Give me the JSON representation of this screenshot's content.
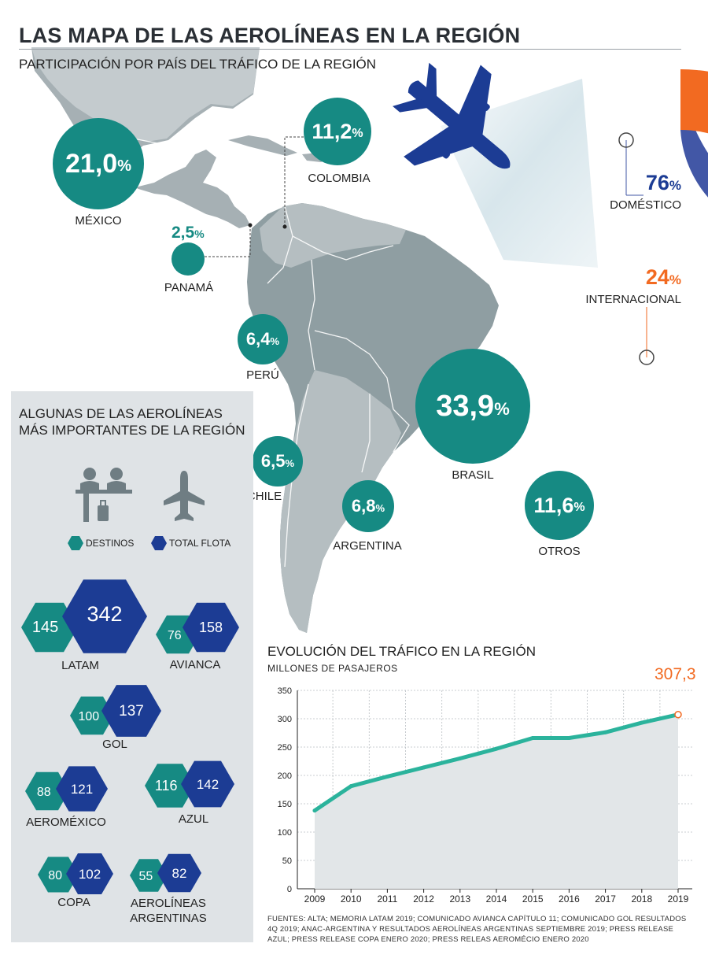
{
  "title": "LAS MAPA DE LAS AEROLÍNEAS EN LA REGIÓN",
  "subtitle": "PARTICIPACIÓN POR PAÍS DEL TRÁFICO DE LA REGIÓN",
  "countries": [
    {
      "name": "MÉXICO",
      "value": "21,0",
      "unit": "%"
    },
    {
      "name": "COLOMBIA",
      "value": "11,2",
      "unit": "%"
    },
    {
      "name": "PANAMÁ",
      "value": "2,5",
      "unit": "%"
    },
    {
      "name": "PERÚ",
      "value": "6,4",
      "unit": "%"
    },
    {
      "name": "BRASIL",
      "value": "33,9",
      "unit": "%"
    },
    {
      "name": "CHILE",
      "value": "6,5",
      "unit": "%"
    },
    {
      "name": "ARGENTINA",
      "value": "6,8",
      "unit": "%"
    },
    {
      "name": "OTROS",
      "value": "11,6",
      "unit": "%"
    }
  ],
  "traffic_split": {
    "domestic": {
      "label": "DOMÉSTICO",
      "value": "76",
      "unit": "%",
      "fraction": 0.76,
      "color": "#4257a6"
    },
    "international": {
      "label": "INTERNACIONAL",
      "value": "24",
      "unit": "%",
      "fraction": 0.24,
      "color": "#f26a21"
    }
  },
  "airlines_panel": {
    "title_line1": "ALGUNAS DE LAS AEROLÍNEAS",
    "title_line2": "MÁS IMPORTANTES DE LA REGIÓN",
    "legend": {
      "destinations": "DESTINOS",
      "fleet": "TOTAL FLOTA"
    },
    "colors": {
      "destinations": "#168a83",
      "fleet": "#1c3c94"
    },
    "airlines": [
      {
        "name": "LATAM",
        "destinations": 145,
        "fleet": 342
      },
      {
        "name": "AVIANCA",
        "destinations": 76,
        "fleet": 158
      },
      {
        "name": "GOL",
        "destinations": 100,
        "fleet": 137
      },
      {
        "name": "AEROMÉXICO",
        "destinations": 88,
        "fleet": 121
      },
      {
        "name": "AZUL",
        "destinations": 116,
        "fleet": 142
      },
      {
        "name": "COPA",
        "destinations": 80,
        "fleet": 102
      },
      {
        "name_line1": "AEROLÍNEAS",
        "name_line2": "ARGENTINAS",
        "destinations": 55,
        "fleet": 82
      }
    ]
  },
  "line_chart": {
    "title": "EVOLUCIÓN DEL TRÁFICO EN LA REGIÓN",
    "subtitle": "MILLONES DE PASAJEROS",
    "highlight_label": "307,3",
    "highlight_color": "#f26a21",
    "line_color": "#2bb39c"
  },
  "chart_data": {
    "type": "area",
    "title": "EVOLUCIÓN DEL TRÁFICO EN LA REGIÓN",
    "ylabel": "MILLONES DE PASAJEROS",
    "x": [
      "2009",
      "2010",
      "2011",
      "2012",
      "2013",
      "2014",
      "2015",
      "2016",
      "2017",
      "2018",
      "2019"
    ],
    "series": [
      {
        "values": [
          138,
          181,
          198,
          214,
          230,
          247,
          266,
          266,
          276,
          293,
          307.3
        ]
      }
    ],
    "ylim": [
      0,
      350
    ],
    "yticks": [
      0,
      50,
      100,
      150,
      200,
      250,
      300,
      350
    ],
    "grid": true
  },
  "sources": "FUENTES: ALTA; MEMORIA LATAM 2019; COMUNICADO AVIANCA CAPÍTULO 11; COMUNICADO GOL RESULTADOS 4Q 2019; ANAC-ARGENTINA Y RESULTADOS AEROLÍNEAS ARGENTINAS SEPTIEMBRE 2019; PRESS RELEASE AZUL; PRESS RELEASE COPA ENERO 2020; PRESS RELEAS AEROMÉCIO ENERO 2020"
}
